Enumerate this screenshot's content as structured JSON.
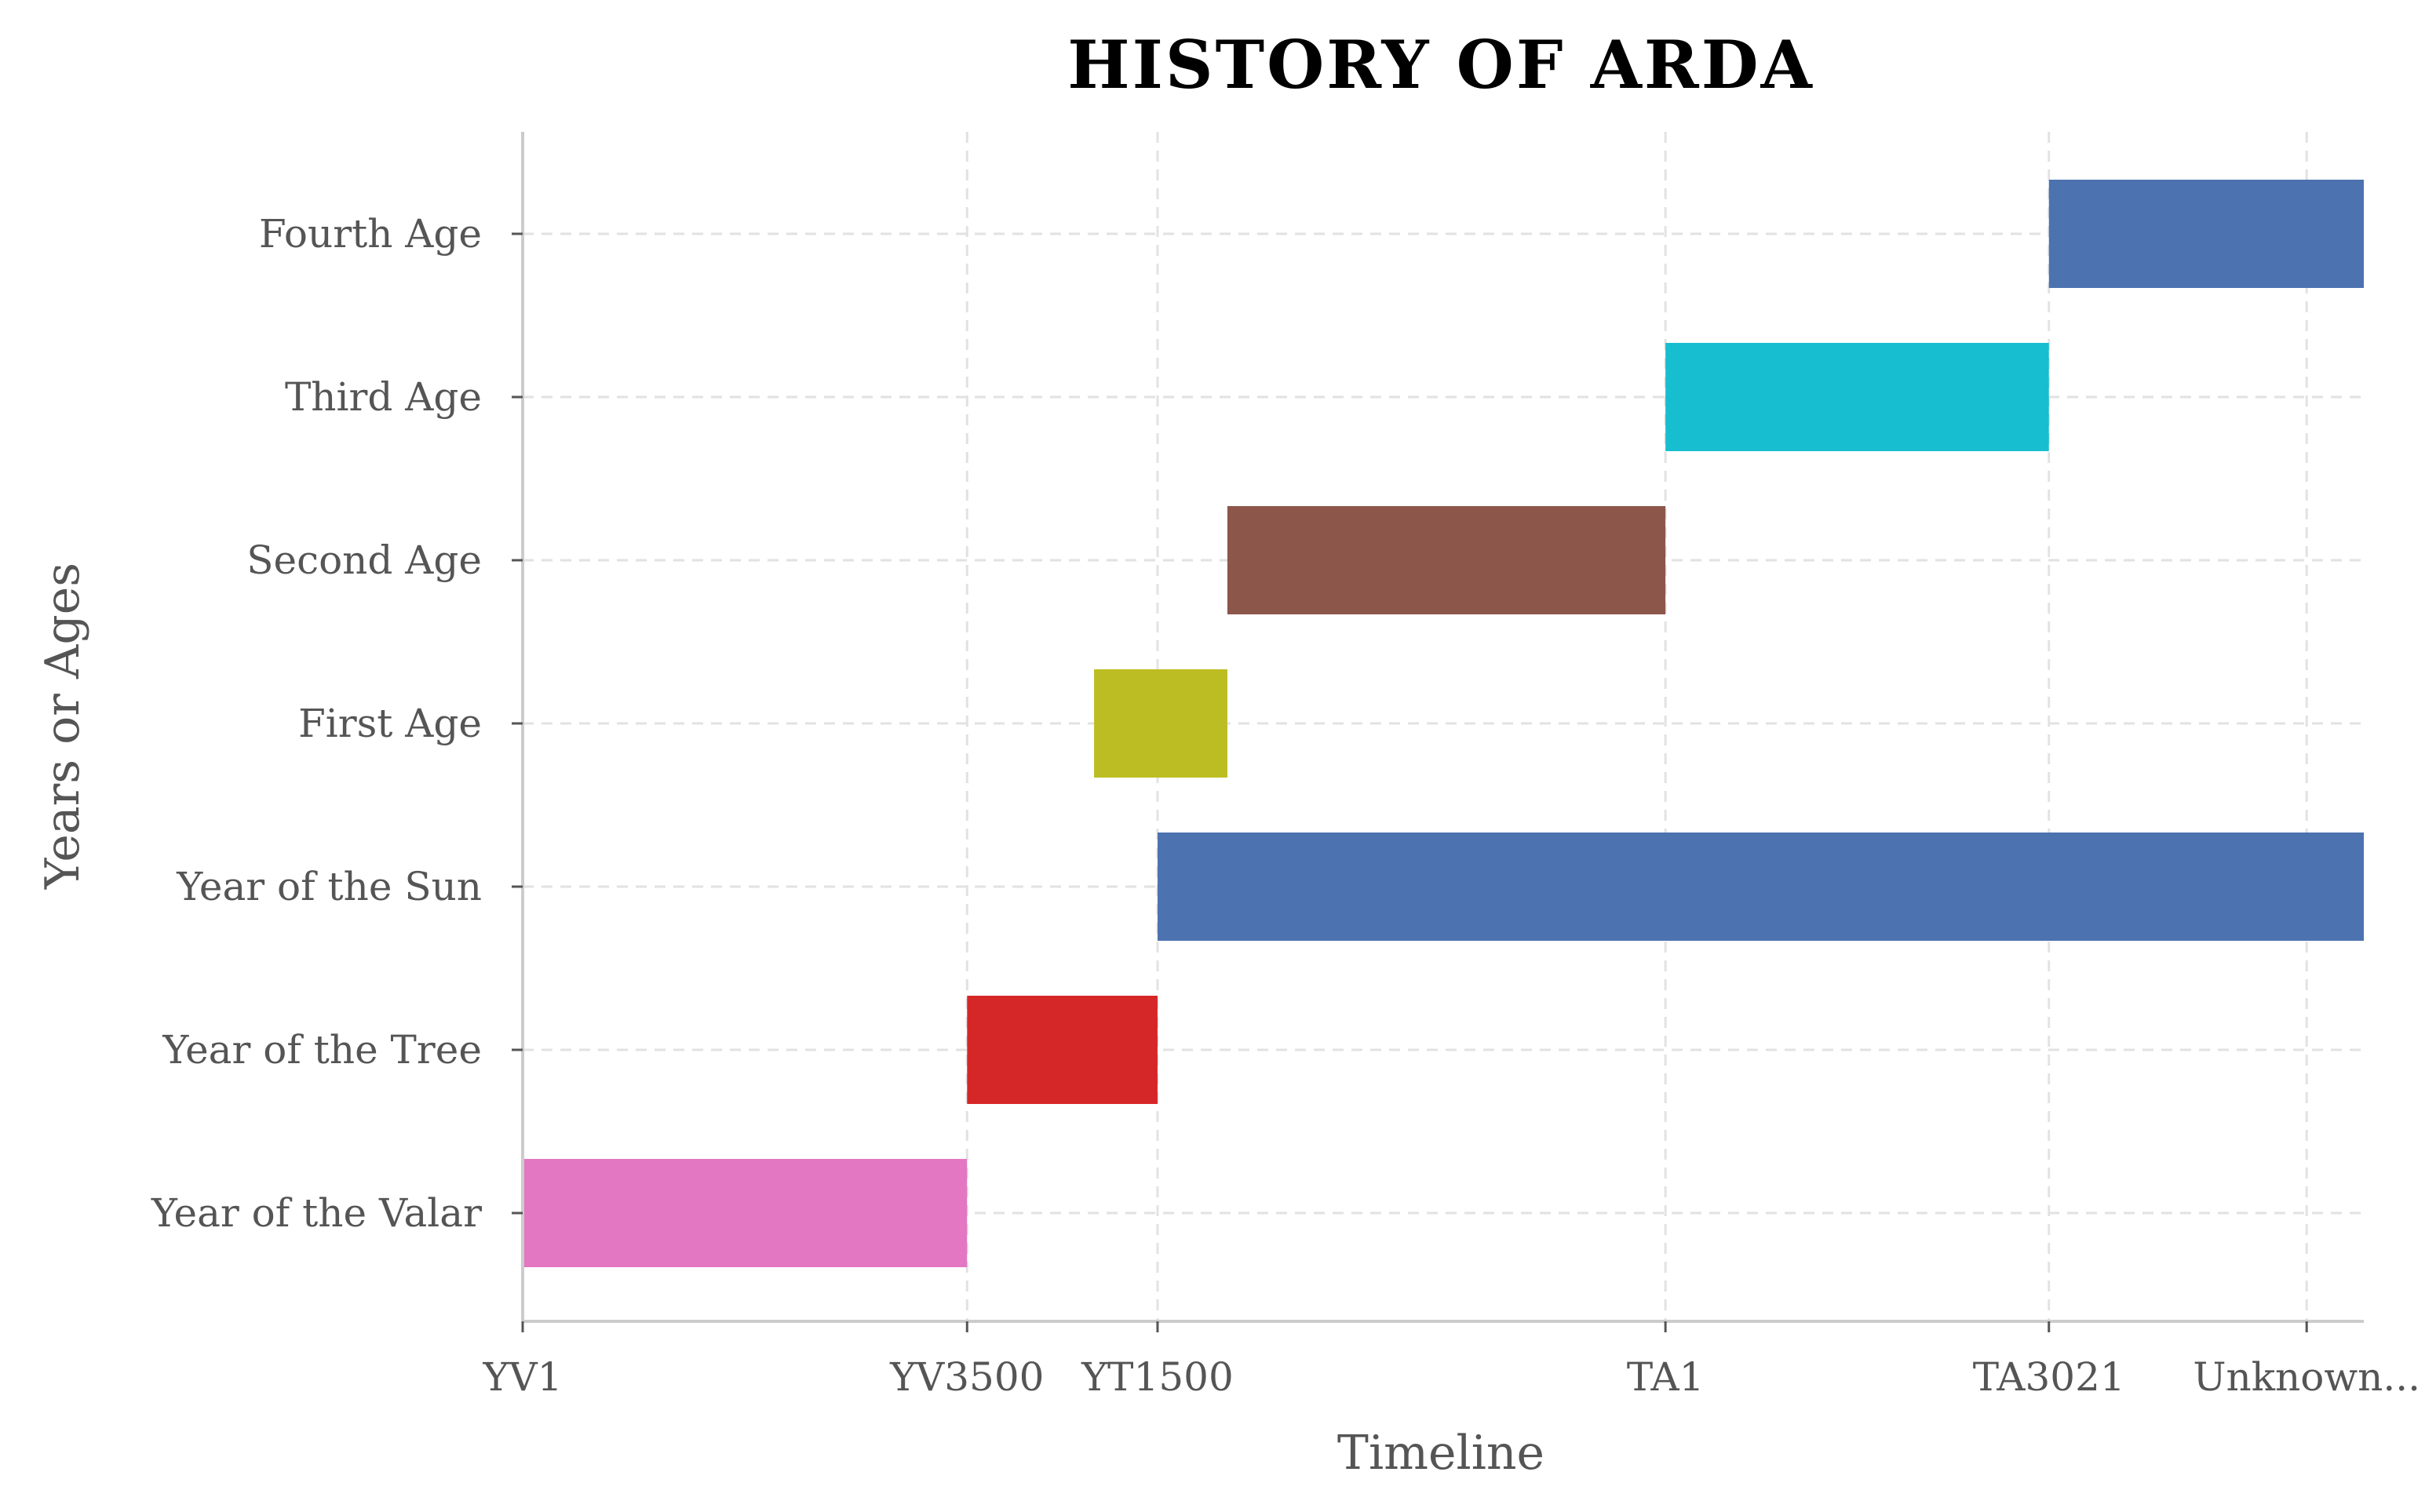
{
  "chart_data": {
    "type": "bar",
    "orientation": "horizontal",
    "title": "HISTORY OF ARDA",
    "xlabel": "Timeline",
    "ylabel": "Years or Ages",
    "grid": true,
    "x_ticks": [
      {
        "label": "YV1",
        "value": 0
      },
      {
        "label": "YV3500",
        "value": 3500
      },
      {
        "label": "YT1500",
        "value": 5000
      },
      {
        "label": "TA1",
        "value": 9000
      },
      {
        "label": "TA3021",
        "value": 12020
      },
      {
        "label": "Unknown...",
        "value": 14050
      }
    ],
    "xlim": [
      0,
      14500
    ],
    "categories": [
      "Year of the Valar",
      "Year of the Tree",
      "Year of the Sun",
      "First Age",
      "Second Age",
      "Third Age",
      "Fourth Age"
    ],
    "bars": [
      {
        "category": "Year of the Valar",
        "start": 0,
        "end": 3500,
        "color": "#e377c2"
      },
      {
        "category": "Year of the Tree",
        "start": 3500,
        "end": 5000,
        "color": "#d62728"
      },
      {
        "category": "Year of the Sun",
        "start": 5000,
        "end": 14500,
        "color": "#4c72b0"
      },
      {
        "category": "First Age",
        "start": 4500,
        "end": 5550,
        "color": "#bcbd22"
      },
      {
        "category": "Second Age",
        "start": 5550,
        "end": 9000,
        "color": "#8c564b"
      },
      {
        "category": "Third Age",
        "start": 9000,
        "end": 12020,
        "color": "#17becf"
      },
      {
        "category": "Fourth Age",
        "start": 12020,
        "end": 14500,
        "color": "#4c72b0"
      }
    ]
  }
}
